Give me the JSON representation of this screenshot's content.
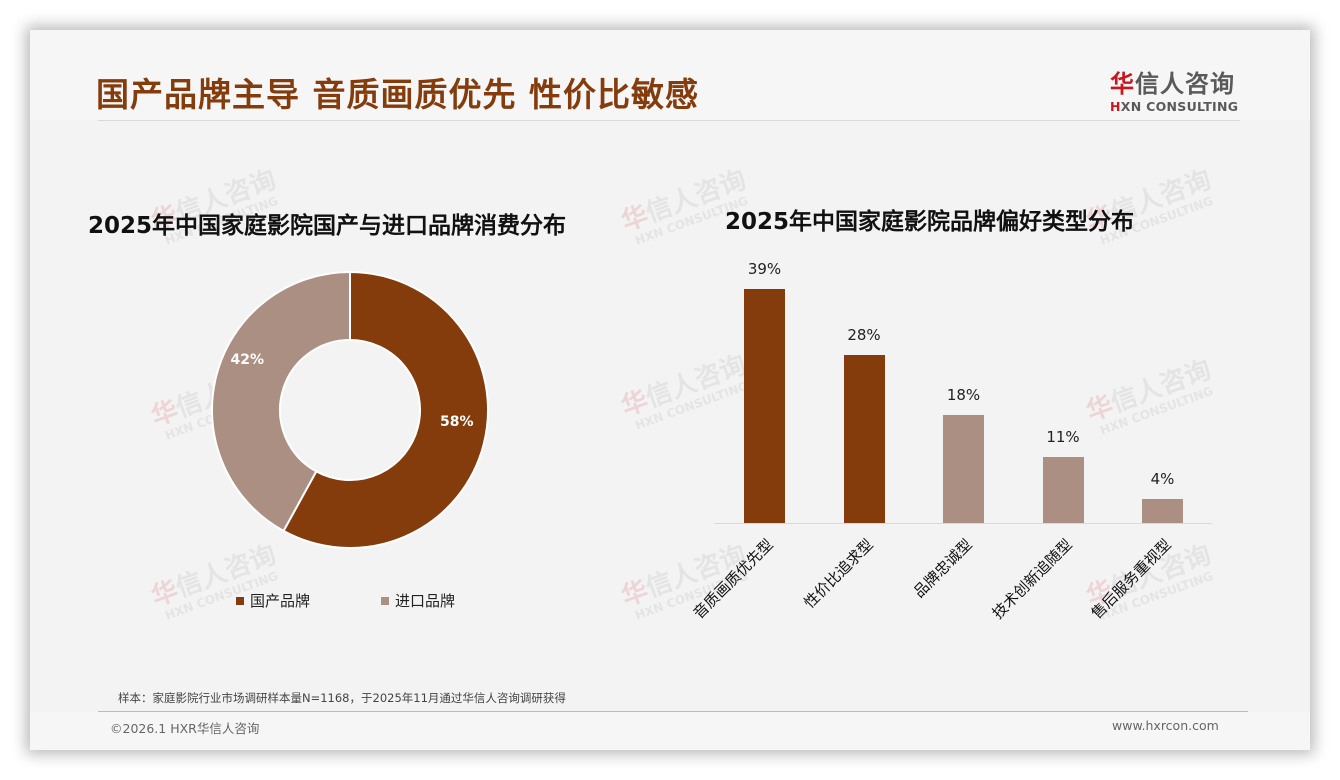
{
  "header": {
    "title": "国产品牌主导 音质画质优先 性价比敏感",
    "logo_cn_first": "华",
    "logo_cn_rest": "信人咨询",
    "logo_en_first": "H",
    "logo_en_rest": "XN CONSULTING"
  },
  "watermark": {
    "cn_first": "华",
    "cn_rest": "信人咨询",
    "en": "HXN CONSULTING"
  },
  "colors": {
    "primary": "#843c0c",
    "secondary": "#ab8f83",
    "accent_red": "#c8161d"
  },
  "chart_data": [
    {
      "type": "pie",
      "subtype": "donut",
      "title": "2025年中国家庭影院国产与进口品牌消费分布",
      "categories": [
        "国产品牌",
        "进口品牌"
      ],
      "values": [
        58,
        42
      ],
      "labels": [
        "58%",
        "42%"
      ],
      "colors": [
        "#843c0c",
        "#ab8f83"
      ],
      "legend_position": "bottom"
    },
    {
      "type": "bar",
      "title": "2025年中国家庭影院品牌偏好类型分布",
      "categories": [
        "音质画质优先型",
        "性价比追求型",
        "品牌忠诚型",
        "技术创新追随型",
        "售后服务重视型"
      ],
      "values": [
        39,
        28,
        18,
        11,
        4
      ],
      "labels": [
        "39%",
        "28%",
        "18%",
        "11%",
        "4%"
      ],
      "colors": [
        "#843c0c",
        "#843c0c",
        "#ab8f83",
        "#ab8f83",
        "#ab8f83"
      ],
      "xlabel": "",
      "ylabel": "",
      "ylim": [
        0,
        40
      ],
      "grid": false,
      "tick_label_rotation": -45
    }
  ],
  "left_chart": {
    "title": "2025年中国家庭影院国产与进口品牌消费分布",
    "slices": [
      {
        "name": "国产品牌",
        "label": "58%",
        "value": 58,
        "color": "#843c0c"
      },
      {
        "name": "进口品牌",
        "label": "42%",
        "value": 42,
        "color": "#ab8f83"
      }
    ],
    "legend": [
      {
        "label": "国产品牌",
        "color": "#843c0c"
      },
      {
        "label": "进口品牌",
        "color": "#ab8f83"
      }
    ]
  },
  "right_chart": {
    "title": "2025年中国家庭影院品牌偏好类型分布",
    "bars": [
      {
        "category": "音质画质优先型",
        "value": 39,
        "label": "39%",
        "color": "#843c0c"
      },
      {
        "category": "性价比追求型",
        "value": 28,
        "label": "28%",
        "color": "#843c0c"
      },
      {
        "category": "品牌忠诚型",
        "value": 18,
        "label": "18%",
        "color": "#ab8f83"
      },
      {
        "category": "技术创新追随型",
        "value": 11,
        "label": "11%",
        "color": "#ab8f83"
      },
      {
        "category": "售后服务重视型",
        "value": 4,
        "label": "4%",
        "color": "#ab8f83"
      }
    ]
  },
  "footer": {
    "note": "样本：家庭影院行业市场调研样本量N=1168，于2025年11月通过华信人咨询调研获得",
    "copyright": "©2026.1 HXR华信人咨询",
    "site": "www.hxrcon.com"
  }
}
